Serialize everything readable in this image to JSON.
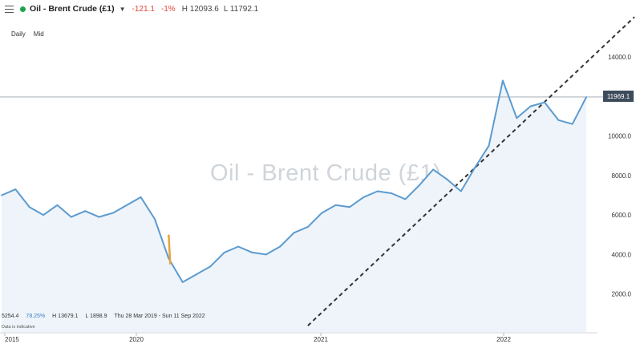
{
  "header": {
    "instrument": "Oil - Brent Crude (£1)",
    "change": "-121.1",
    "change_pct": "-1%",
    "high": "H 12093.6",
    "low": "L 11792.1"
  },
  "tabs": [
    "Daily",
    "Mid"
  ],
  "watermark": "Oil - Brent Crude (£1)",
  "current_price": "11969.1",
  "stats": {
    "value": "5254.4",
    "pct": "78.25%",
    "high": "H 13679.1",
    "low": "L 1898.9",
    "range": "Thu 28 Mar 2019 - Sun 11 Sep 2022"
  },
  "note": "Data is indicative",
  "colors": {
    "line": "#5b9bd0",
    "area": "#eef4fa",
    "negative": "#e0453a",
    "status": "#22a34a",
    "highlight": "#e8a33d"
  },
  "chart_data": {
    "type": "line",
    "title": "Oil - Brent Crude (£1)",
    "xlabel": "",
    "ylabel": "",
    "x_ticks": [
      "2015",
      "2020",
      "2021",
      "2022"
    ],
    "y_ticks": [
      "2000.0",
      "4000.0",
      "6000.0",
      "8000.0",
      "10000.0",
      "14000.0"
    ],
    "ylim": [
      0,
      15200
    ],
    "grid": false,
    "series": [
      {
        "x": [
          "2019-03",
          "2019-04",
          "2019-05",
          "2019-06",
          "2019-07",
          "2019-08",
          "2019-09",
          "2019-10",
          "2019-11",
          "2019-12",
          "2020-01",
          "2020-02",
          "2020-03",
          "2020-04",
          "2020-05",
          "2020-06",
          "2020-07",
          "2020-08",
          "2020-09",
          "2020-10",
          "2020-11",
          "2020-12",
          "2021-01",
          "2021-02",
          "2021-03",
          "2021-04",
          "2021-05",
          "2021-06",
          "2021-07",
          "2021-08",
          "2021-09",
          "2021-10",
          "2021-11",
          "2021-12",
          "2022-01",
          "2022-02",
          "2022-03",
          "2022-04",
          "2022-05",
          "2022-06",
          "2022-07",
          "2022-08",
          "2022-09"
        ],
        "values": [
          7000,
          7300,
          6400,
          6000,
          6500,
          5900,
          6200,
          5900,
          6100,
          6500,
          6900,
          5800,
          3800,
          2600,
          3000,
          3400,
          4100,
          4400,
          4100,
          4000,
          4400,
          5100,
          5400,
          6100,
          6500,
          6400,
          6900,
          7200,
          7100,
          6800,
          7500,
          8300,
          7800,
          7200,
          8400,
          9500,
          12800,
          10900,
          11500,
          11700,
          10800,
          10600,
          11969
        ]
      }
    ],
    "trendline": {
      "x": [
        "2021-01",
        "2022-09"
      ],
      "values": [
        400,
        14800
      ],
      "style": "dashed"
    },
    "current_price": 11969.1
  }
}
